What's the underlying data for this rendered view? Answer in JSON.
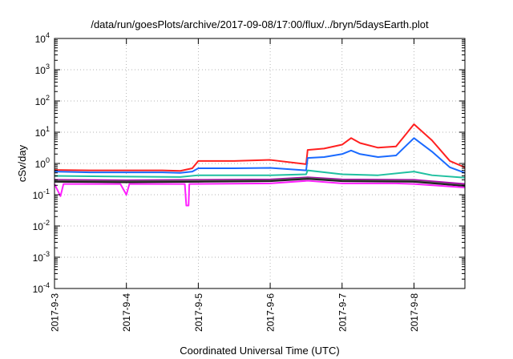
{
  "chart_data": {
    "type": "line",
    "title": "/data/run/goesPlots/archive/2017-09-08/17:00/flux/../bryn/5daysEarth.plot",
    "xlabel": "Coordinated Universal Time (UTC)",
    "ylabel": "cSv/day",
    "yscale": "log",
    "ylim": [
      0.0001,
      10000
    ],
    "y_ticks": [
      {
        "base": "10",
        "exp": "4",
        "value": 10000
      },
      {
        "base": "10",
        "exp": "3",
        "value": 1000
      },
      {
        "base": "10",
        "exp": "2",
        "value": 100
      },
      {
        "base": "10",
        "exp": "1",
        "value": 10
      },
      {
        "base": "10",
        "exp": "0",
        "value": 1
      },
      {
        "base": "10",
        "exp": "-1",
        "value": 0.1
      },
      {
        "base": "10",
        "exp": "-2",
        "value": 0.01
      },
      {
        "base": "10",
        "exp": "-3",
        "value": 0.001
      },
      {
        "base": "10",
        "exp": "-4",
        "value": 0.0001
      }
    ],
    "xlim": [
      "2017-09-03T00:00",
      "2017-09-08T17:00"
    ],
    "x_ticks": [
      "2017-9-3",
      "2017-9-4",
      "2017-9-5",
      "2017-9-6",
      "2017-9-7",
      "2017-9-8"
    ],
    "grid": true,
    "series": [
      {
        "color": "#ff2020",
        "points": [
          [
            "2017-09-03T00:00",
            0.62
          ],
          [
            "2017-09-03T12:00",
            0.6
          ],
          [
            "2017-09-04T00:00",
            0.6
          ],
          [
            "2017-09-04T12:00",
            0.6
          ],
          [
            "2017-09-04T18:00",
            0.58
          ],
          [
            "2017-09-04T22:00",
            0.7
          ],
          [
            "2017-09-05T00:00",
            1.2
          ],
          [
            "2017-09-05T12:00",
            1.2
          ],
          [
            "2017-09-06T00:00",
            1.3
          ],
          [
            "2017-09-06T12:00",
            0.95
          ],
          [
            "2017-09-06T12:30",
            2.7
          ],
          [
            "2017-09-06T18:00",
            3.0
          ],
          [
            "2017-09-07T00:00",
            4.0
          ],
          [
            "2017-09-07T03:00",
            6.5
          ],
          [
            "2017-09-07T06:00",
            4.5
          ],
          [
            "2017-09-07T12:00",
            3.2
          ],
          [
            "2017-09-07T18:00",
            3.5
          ],
          [
            "2017-09-08T00:00",
            18.0
          ],
          [
            "2017-09-08T06:00",
            5.5
          ],
          [
            "2017-09-08T12:00",
            1.2
          ],
          [
            "2017-09-08T17:00",
            0.75
          ]
        ]
      },
      {
        "color": "#1a6aff",
        "points": [
          [
            "2017-09-03T00:00",
            0.55
          ],
          [
            "2017-09-03T12:00",
            0.52
          ],
          [
            "2017-09-04T00:00",
            0.52
          ],
          [
            "2017-09-04T12:00",
            0.52
          ],
          [
            "2017-09-04T18:00",
            0.5
          ],
          [
            "2017-09-04T22:00",
            0.55
          ],
          [
            "2017-09-05T00:00",
            0.7
          ],
          [
            "2017-09-05T12:00",
            0.7
          ],
          [
            "2017-09-06T00:00",
            0.72
          ],
          [
            "2017-09-06T12:00",
            0.6
          ],
          [
            "2017-09-06T12:30",
            1.5
          ],
          [
            "2017-09-06T18:00",
            1.6
          ],
          [
            "2017-09-07T00:00",
            2.0
          ],
          [
            "2017-09-07T03:00",
            2.6
          ],
          [
            "2017-09-07T06:00",
            2.0
          ],
          [
            "2017-09-07T12:00",
            1.6
          ],
          [
            "2017-09-07T18:00",
            1.8
          ],
          [
            "2017-09-08T00:00",
            6.5
          ],
          [
            "2017-09-08T06:00",
            2.4
          ],
          [
            "2017-09-08T12:00",
            0.75
          ],
          [
            "2017-09-08T17:00",
            0.5
          ]
        ]
      },
      {
        "color": "#20c0a0",
        "points": [
          [
            "2017-09-03T00:00",
            0.4
          ],
          [
            "2017-09-04T00:00",
            0.38
          ],
          [
            "2017-09-04T18:00",
            0.37
          ],
          [
            "2017-09-05T00:00",
            0.42
          ],
          [
            "2017-09-06T00:00",
            0.42
          ],
          [
            "2017-09-06T12:00",
            0.45
          ],
          [
            "2017-09-06T12:30",
            0.6
          ],
          [
            "2017-09-07T00:00",
            0.45
          ],
          [
            "2017-09-07T12:00",
            0.42
          ],
          [
            "2017-09-08T00:00",
            0.55
          ],
          [
            "2017-09-08T06:00",
            0.42
          ],
          [
            "2017-09-08T17:00",
            0.35
          ]
        ]
      },
      {
        "color": "#b000b0",
        "points": [
          [
            "2017-09-03T00:00",
            0.3
          ],
          [
            "2017-09-04T00:00",
            0.29
          ],
          [
            "2017-09-05T00:00",
            0.3
          ],
          [
            "2017-09-06T00:00",
            0.31
          ],
          [
            "2017-09-06T12:30",
            0.36
          ],
          [
            "2017-09-07T00:00",
            0.31
          ],
          [
            "2017-09-08T00:00",
            0.3
          ],
          [
            "2017-09-08T17:00",
            0.22
          ]
        ]
      },
      {
        "color": "#606060",
        "points": [
          [
            "2017-09-03T00:00",
            0.28
          ],
          [
            "2017-09-04T00:00",
            0.27
          ],
          [
            "2017-09-05T00:00",
            0.28
          ],
          [
            "2017-09-06T00:00",
            0.29
          ],
          [
            "2017-09-06T12:30",
            0.34
          ],
          [
            "2017-09-07T00:00",
            0.29
          ],
          [
            "2017-09-08T00:00",
            0.28
          ],
          [
            "2017-09-08T17:00",
            0.2
          ]
        ]
      },
      {
        "color": "#202020",
        "points": [
          [
            "2017-09-03T00:00",
            0.26
          ],
          [
            "2017-09-04T00:00",
            0.25
          ],
          [
            "2017-09-05T00:00",
            0.26
          ],
          [
            "2017-09-06T00:00",
            0.27
          ],
          [
            "2017-09-06T12:30",
            0.32
          ],
          [
            "2017-09-07T00:00",
            0.27
          ],
          [
            "2017-09-08T00:00",
            0.26
          ],
          [
            "2017-09-08T17:00",
            0.19
          ]
        ]
      },
      {
        "color": "#ff20ff",
        "points": [
          [
            "2017-09-03T00:00",
            0.22
          ],
          [
            "2017-09-03T02:00",
            0.09
          ],
          [
            "2017-09-03T03:00",
            0.22
          ],
          [
            "2017-09-03T22:00",
            0.22
          ],
          [
            "2017-09-04T00:00",
            0.1
          ],
          [
            "2017-09-04T01:00",
            0.22
          ],
          [
            "2017-09-04T19:30",
            0.22
          ],
          [
            "2017-09-04T20:00",
            0.045
          ],
          [
            "2017-09-04T20:45",
            0.045
          ],
          [
            "2017-09-04T21:00",
            0.22
          ],
          [
            "2017-09-06T00:00",
            0.23
          ],
          [
            "2017-09-06T12:30",
            0.28
          ],
          [
            "2017-09-07T00:00",
            0.23
          ],
          [
            "2017-09-07T18:00",
            0.23
          ],
          [
            "2017-09-08T00:00",
            0.22
          ],
          [
            "2017-09-08T17:00",
            0.17
          ]
        ]
      }
    ]
  }
}
